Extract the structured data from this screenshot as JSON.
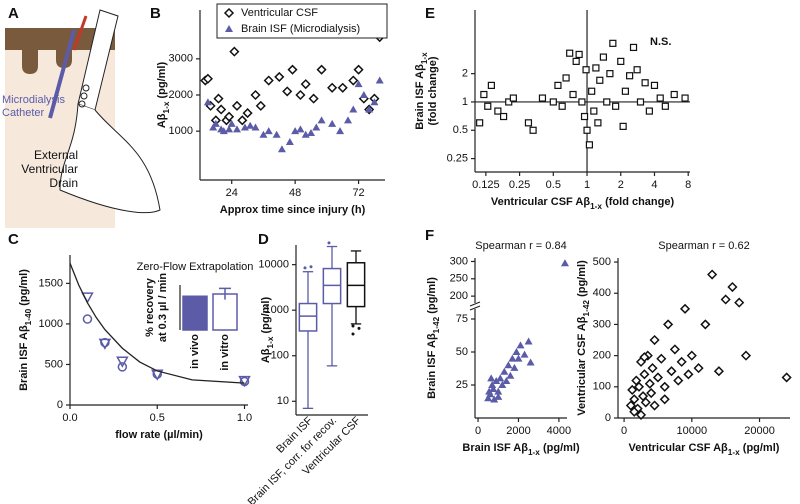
{
  "panel_a": {
    "label": "A",
    "catheter": "Microdialysis Catheter",
    "drain": "External Ventricular Drain"
  },
  "chart_data": [
    {
      "type": "scatter",
      "panel": "B",
      "xlabel": "Approx time since injury (h)",
      "ylabel": "Aβ1-x (pg/ml)",
      "xlim": [
        12,
        82
      ],
      "ylim": [
        -350,
        4350
      ],
      "xticks": [
        24,
        48,
        72
      ],
      "yticks": [
        1000,
        2000,
        3000
      ],
      "legend": "top-right",
      "series": [
        {
          "name": "Ventricular CSF",
          "color": "#111111",
          "marker": "diamond",
          "x": [
            14,
            15,
            16,
            18,
            19,
            20,
            22,
            23,
            25,
            26,
            28,
            30,
            33,
            35,
            38,
            42,
            45,
            47,
            50,
            52,
            55,
            58,
            62,
            66,
            70,
            72,
            74,
            76,
            78,
            80
          ],
          "values": [
            2400,
            2450,
            1700,
            1300,
            1900,
            1600,
            1300,
            1400,
            3200,
            1700,
            1300,
            1500,
            2000,
            1700,
            2400,
            2500,
            2100,
            2700,
            2000,
            2300,
            1900,
            2700,
            2200,
            2200,
            2400,
            2700,
            1900,
            1600,
            1900,
            3600
          ]
        },
        {
          "name": "Brain ISF (Microdialysis)",
          "color": "#5b5ba8",
          "marker": "triangle",
          "x": [
            15,
            17,
            18,
            20,
            21,
            23,
            24,
            26,
            29,
            31,
            33,
            36,
            38,
            41,
            43,
            46,
            48,
            50,
            52,
            54,
            56,
            58,
            62,
            65,
            68,
            70,
            72,
            74,
            76,
            78,
            80
          ],
          "values": [
            1800,
            1100,
            1200,
            1050,
            1000,
            1050,
            1200,
            1050,
            1100,
            1150,
            1100,
            900,
            1000,
            900,
            500,
            700,
            1000,
            1050,
            900,
            950,
            1100,
            1300,
            1200,
            1000,
            1300,
            1600,
            2300,
            2000,
            1600,
            1800,
            2400
          ]
        }
      ]
    },
    {
      "type": "line",
      "panel": "C",
      "xlabel": "flow rate (µl/min)",
      "ylabel": "Brain ISF Aβ1-40 (pg/ml)",
      "label_color": "#5b5ba8",
      "xlim": [
        0,
        1.02
      ],
      "ylim": [
        0,
        1850
      ],
      "xticks": [
        {
          "value": 0,
          "label": "0.0"
        },
        {
          "value": 0.5,
          "label": "0.5"
        },
        {
          "value": 1,
          "label": "1.0"
        }
      ],
      "yticks": [
        0,
        500,
        1000,
        1500
      ],
      "series": [
        {
          "color": "#5b5ba8",
          "marker": "triangle-down-open",
          "x": [
            0.1,
            0.2,
            0.3,
            0.5,
            1.0
          ],
          "values": [
            1330,
            760,
            540,
            380,
            300
          ]
        },
        {
          "color": "#5b5ba8",
          "marker": "circle-open",
          "x": [
            0.1,
            0.2,
            0.3,
            0.5,
            1.0
          ],
          "values": [
            1060,
            770,
            470,
            380,
            290
          ]
        },
        {
          "color": "#222222",
          "marker": "none",
          "x": [
            0,
            0.05,
            0.1,
            0.15,
            0.2,
            0.3,
            0.4,
            0.5,
            0.7,
            1.0
          ],
          "values": [
            1750,
            1480,
            1260,
            1080,
            930,
            700,
            530,
            420,
            310,
            270
          ]
        }
      ]
    },
    {
      "type": "bar",
      "title": "Zero-Flow  Extrapolation",
      "ylabel": [
        "% recovery",
        "at 0.3 µl / min"
      ],
      "ylim": [
        0,
        40
      ],
      "categories": [
        "in vivo",
        "in vitro"
      ],
      "values": [
        30,
        32
      ],
      "errors": [
        null,
        5
      ],
      "colors": [
        "#5b5ba8",
        "#ffffff"
      ],
      "edge": "#5b5ba8"
    },
    {
      "type": "box",
      "panel": "D",
      "ylabel": "Aβ1-x (pg/ml)",
      "log": true,
      "ylim": [
        5,
        27000
      ],
      "yticks": [
        10,
        100,
        1000,
        10000
      ],
      "categories": [
        "Brain ISF",
        "Brain ISF, corr. for recov.",
        "Ventricular CSF"
      ],
      "colors": [
        "#5b5ba8",
        "#5b5ba8",
        "#111111"
      ],
      "low": [
        7,
        60,
        500
      ],
      "q1": [
        350,
        1400,
        1200
      ],
      "median": [
        740,
        3500,
        3500
      ],
      "q3": [
        1400,
        8200,
        11000
      ],
      "high": [
        7000,
        25000,
        20000
      ],
      "outliers": [
        [
          8500,
          9000
        ],
        [
          30000
        ],
        [
          300,
          400,
          450
        ]
      ]
    },
    {
      "type": "scatter",
      "panel": "E",
      "xlabel": "Ventricular CSF Aβ1-x (fold change)",
      "ylabel": [
        "Brain ISF Aβ1-x",
        "(fold change)"
      ],
      "log": true,
      "annotation": "N.S.",
      "reference_x": 1,
      "reference_y": 1,
      "xlim": [
        0.1,
        8.3
      ],
      "ylim": [
        0.18,
        9.5
      ],
      "xticks": [
        0.125,
        0.25,
        0.5,
        1,
        2,
        4,
        8
      ],
      "yticks": [
        0.25,
        0.5,
        1,
        2
      ],
      "series": [
        {
          "color": "#111111",
          "marker": "square-open",
          "x": [
            0.11,
            0.12,
            0.13,
            0.14,
            0.16,
            0.18,
            0.2,
            0.22,
            0.3,
            0.33,
            0.4,
            0.5,
            0.55,
            0.6,
            0.65,
            0.7,
            0.75,
            0.8,
            0.85,
            0.9,
            0.95,
            1.0,
            1.05,
            1.1,
            1.15,
            1.2,
            1.3,
            1.4,
            1.5,
            1.6,
            1.8,
            2.0,
            2.2,
            2.4,
            2.6,
            2.8,
            3.0,
            3.3,
            3.6,
            4.0,
            4.5,
            5.0,
            6.0,
            7.5,
            1.25,
            0.98,
            2.1,
            1.7
          ],
          "values": [
            0.6,
            1.2,
            0.9,
            1.5,
            0.8,
            0.7,
            1.0,
            1.1,
            0.6,
            0.5,
            1.1,
            1.0,
            1.5,
            0.9,
            1.8,
            3.3,
            1.2,
            2.7,
            3.2,
            1.0,
            0.7,
            0.5,
            0.35,
            1.3,
            0.8,
            2.3,
            1.7,
            3.0,
            1.0,
            2.0,
            0.9,
            2.7,
            1.3,
            1.9,
            3.8,
            2.2,
            1.0,
            1.6,
            0.8,
            1.5,
            1.1,
            0.9,
            1.2,
            1.1,
            0.6,
            2.2,
            0.55,
            4.2
          ]
        }
      ]
    },
    {
      "type": "scatter",
      "panel": "F",
      "title": "Spearman r = 0.84",
      "xlabel": "Brain ISF Aβ1-x (pg/ml)",
      "ylabel": "Brain ISF Aβ1-42 (pg/ml)",
      "label_color": "#5b5ba8",
      "xlim": [
        -150,
        4400
      ],
      "ylim": [
        0,
        310
      ],
      "axis_break": [
        80,
        190
      ],
      "xticks": [
        0,
        2000,
        4000
      ],
      "yticks": [
        25,
        50,
        75,
        200,
        250,
        300
      ],
      "series": [
        {
          "color": "#5b5ba8",
          "marker": "triangle",
          "x": [
            4300,
            500,
            550,
            600,
            700,
            750,
            800,
            900,
            1000,
            1100,
            1200,
            1300,
            1400,
            1500,
            1600,
            1700,
            1800,
            1900,
            2000,
            2100,
            2300,
            2500,
            2600,
            1000,
            650
          ],
          "values": [
            295,
            15,
            20,
            18,
            25,
            22,
            14,
            28,
            20,
            30,
            25,
            35,
            28,
            40,
            32,
            45,
            38,
            50,
            45,
            55,
            48,
            58,
            42,
            16,
            30
          ]
        }
      ]
    },
    {
      "type": "scatter",
      "title": "Spearman r = 0.62",
      "xlabel": "Ventricular CSF Aβ1-x (pg/ml)",
      "ylabel": "Ventricular  CSF Aβ1-42 (pg/ml)",
      "xlim": [
        -900,
        24500
      ],
      "ylim": [
        0,
        513
      ],
      "xticks": [
        0,
        10000,
        20000
      ],
      "yticks": [
        0,
        100,
        200,
        300,
        400,
        500
      ],
      "series": [
        {
          "color": "#111111",
          "marker": "diamond",
          "x": [
            1000,
            1200,
            1500,
            1800,
            2000,
            2200,
            2500,
            2800,
            3000,
            3200,
            3500,
            3800,
            4000,
            4200,
            4500,
            5000,
            5500,
            6000,
            6500,
            7000,
            7500,
            8000,
            8500,
            9000,
            9500,
            10000,
            11000,
            12000,
            13000,
            14000,
            15000,
            16000,
            17000,
            18000,
            24000,
            1500,
            2500,
            3000,
            6000,
            4500
          ],
          "values": [
            40,
            90,
            60,
            120,
            30,
            100,
            180,
            70,
            140,
            50,
            200,
            110,
            80,
            160,
            250,
            130,
            190,
            100,
            300,
            150,
            220,
            120,
            180,
            350,
            140,
            200,
            160,
            300,
            460,
            150,
            380,
            420,
            370,
            200,
            130,
            20,
            10,
            195,
            60,
            40
          ]
        }
      ]
    }
  ]
}
